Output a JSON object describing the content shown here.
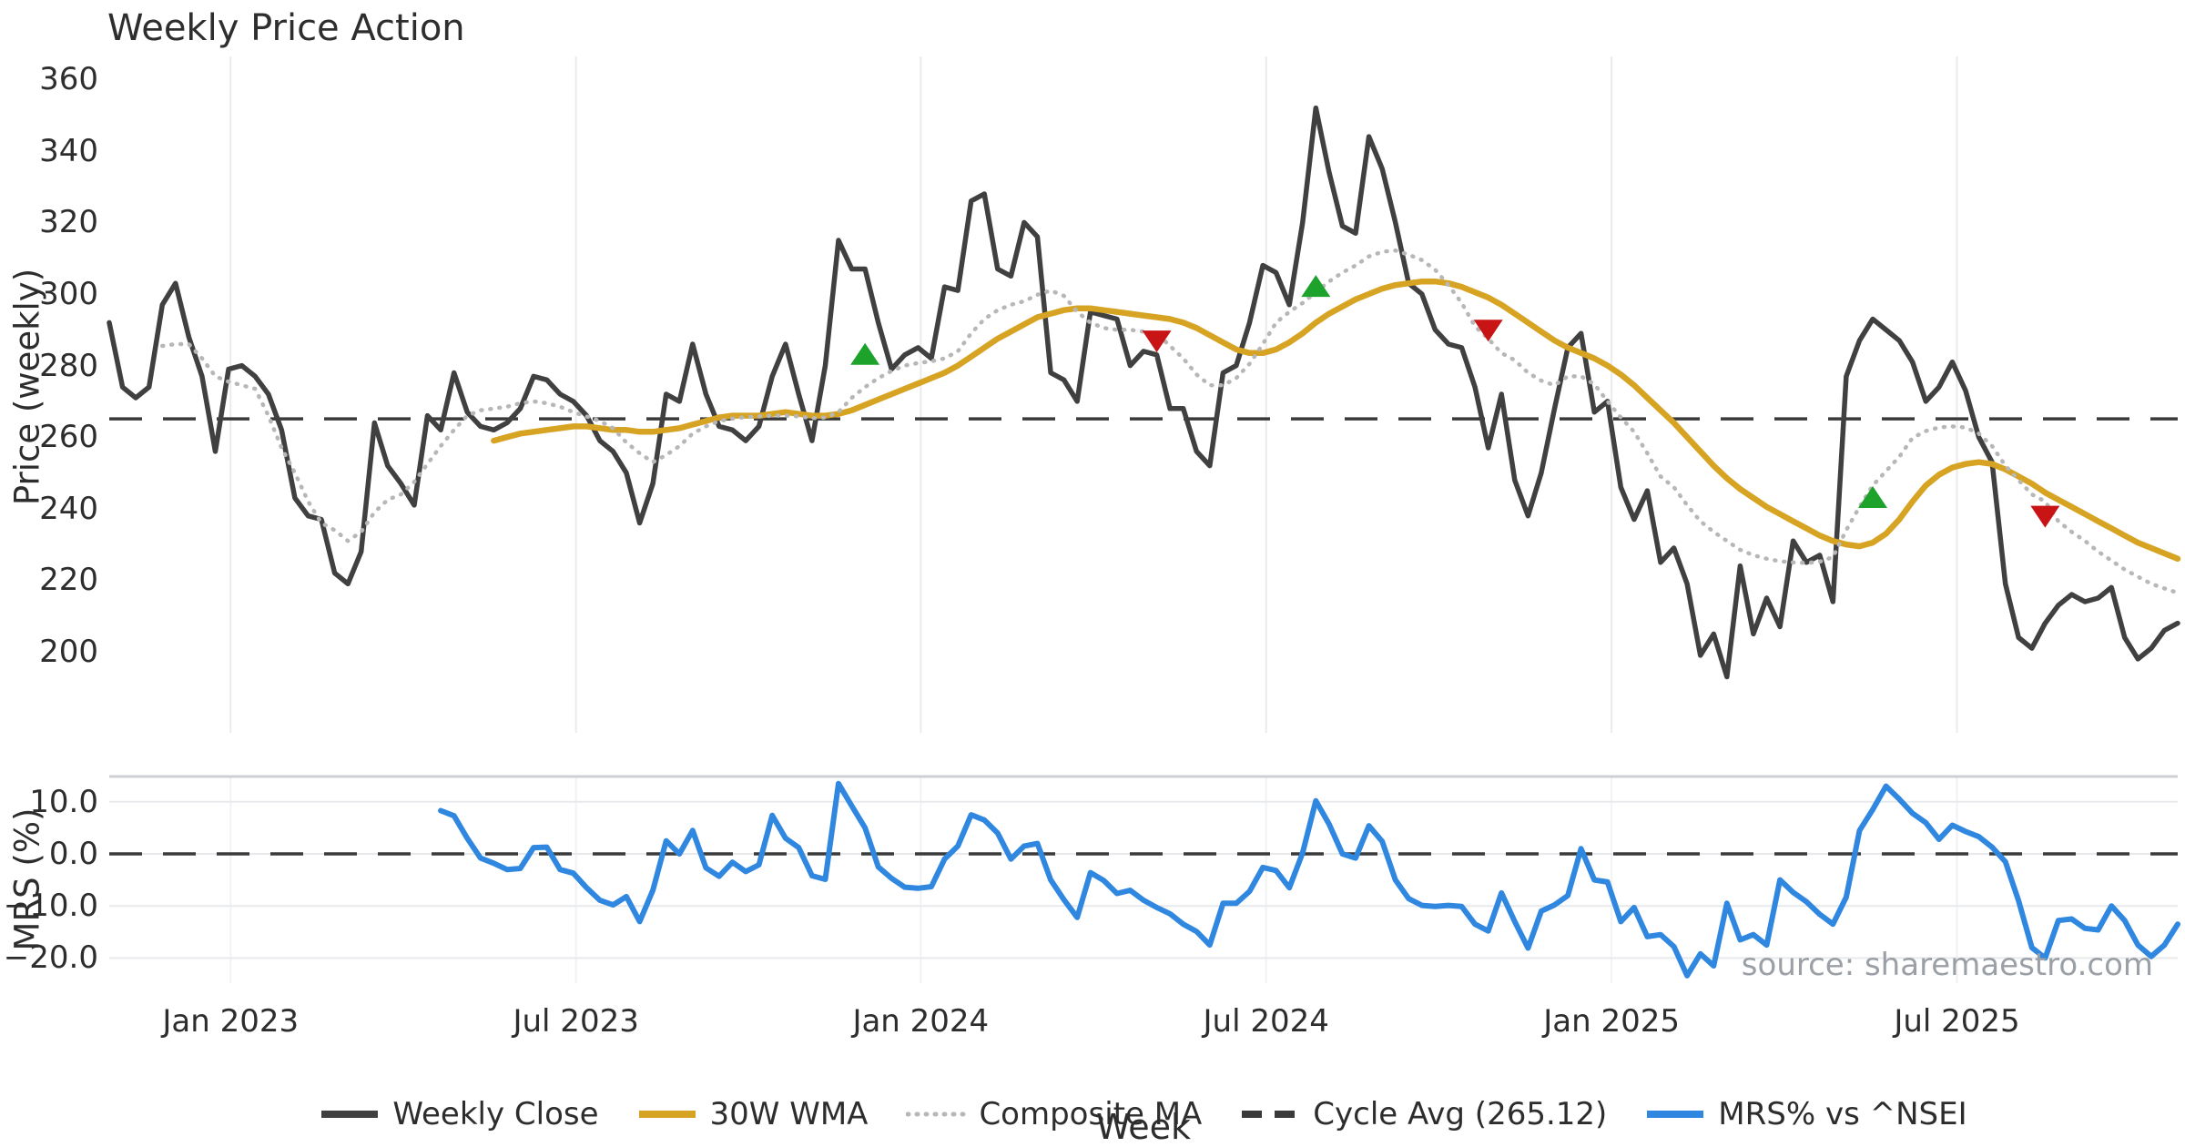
{
  "chart_data": {
    "type": "line",
    "title": "Weekly Price Action",
    "watermark": "source: sharemaestro.com",
    "x_axis": {
      "label": "Week",
      "total_weeks": 157,
      "tick_weeks": [
        9.15,
        35.2,
        61.2,
        87.25,
        113.3,
        139.35
      ],
      "tick_labels": [
        "Jan 2023",
        "Jul 2023",
        "Jan 2024",
        "Jul 2024",
        "Jan 2025",
        "Jul 2025"
      ]
    },
    "price_panel": {
      "ylabel": "Price (weekly)",
      "yticks": [
        360,
        340,
        320,
        300,
        280,
        260,
        240,
        220,
        200
      ],
      "ylim": [
        183,
        365
      ],
      "cycle_avg": 265.12,
      "series": [
        {
          "name": "Weekly Close",
          "style": "solid",
          "color": "#404040",
          "width": 5.5,
          "start_week": 0,
          "values": [
            292,
            274,
            271,
            274,
            297,
            303,
            288,
            277,
            256,
            279,
            280,
            277,
            272,
            262,
            243,
            238,
            237,
            222,
            219,
            228,
            264,
            252,
            247,
            241,
            266,
            262,
            278,
            267,
            263,
            262,
            264,
            268,
            277,
            276,
            272,
            270,
            266,
            259,
            256,
            250,
            236,
            247,
            272,
            270,
            286,
            272,
            263,
            262,
            259,
            263,
            277,
            286,
            272,
            259,
            280,
            315,
            307,
            307,
            292,
            279,
            283,
            285,
            282,
            302,
            301,
            326,
            328,
            307,
            305,
            320,
            316,
            278,
            276,
            270,
            295,
            294,
            293,
            280,
            284,
            283,
            268,
            268,
            256,
            252,
            278,
            280,
            292,
            308,
            306,
            297,
            320,
            352,
            334,
            319,
            317,
            344,
            335,
            320,
            303,
            300,
            290,
            286,
            285,
            274,
            257,
            272,
            248,
            238,
            250,
            268,
            285,
            289,
            267,
            270,
            246,
            237,
            245,
            225,
            229,
            219,
            199,
            205,
            193,
            224,
            205,
            215,
            207,
            231,
            225,
            227,
            214,
            277,
            287,
            293,
            290,
            287,
            281,
            270,
            274,
            281,
            273,
            260,
            253,
            219,
            204,
            201,
            208,
            213,
            216,
            214,
            215,
            218,
            204,
            198,
            201,
            206,
            208
          ]
        },
        {
          "name": "30W WMA",
          "style": "solid",
          "color": "#d7a322",
          "width": 6.5,
          "start_week": 29,
          "values": [
            259,
            260,
            261,
            261.5,
            262,
            262.5,
            263,
            263,
            262.5,
            262,
            262,
            261.5,
            261.5,
            262,
            262.5,
            263.5,
            264.5,
            265.5,
            266,
            266,
            266,
            266.5,
            267,
            266.5,
            266,
            266,
            266.5,
            267.5,
            269,
            270.5,
            272,
            273.5,
            275,
            276.5,
            278,
            280,
            282.5,
            285,
            287.5,
            289.5,
            291.5,
            293.5,
            294.5,
            295.5,
            296,
            296,
            295.5,
            295,
            294.5,
            294,
            293.5,
            293,
            292,
            290.5,
            288.5,
            286.5,
            284.5,
            283.5,
            283.5,
            284.5,
            286.5,
            289,
            292,
            294.5,
            296.5,
            298.5,
            300,
            301.5,
            302.5,
            303,
            303.5,
            303.5,
            303,
            302,
            300.5,
            299,
            297,
            294.5,
            292,
            289.5,
            287,
            285,
            283.5,
            282,
            280,
            277.5,
            274.5,
            271,
            267.5,
            264,
            260,
            256,
            252,
            248.5,
            245.5,
            243,
            240.5,
            238.5,
            236.5,
            234.5,
            232.5,
            231,
            230,
            229.5,
            230.5,
            233,
            237,
            242,
            246.5,
            249.5,
            251.5,
            252.5,
            253,
            252.5,
            251,
            249,
            247,
            244.5,
            242.5,
            240.5,
            238.5,
            236.5,
            234.5,
            232.5,
            230.5,
            229,
            227.5,
            226
          ]
        },
        {
          "name": "Composite MA",
          "style": "dotted",
          "color": "#b7b7b7",
          "width": 4.5,
          "start_week": 4,
          "values": [
            285.5,
            286,
            286,
            282,
            277,
            275.5,
            274.5,
            273.5,
            266,
            257,
            250,
            242,
            236,
            234,
            231,
            233.5,
            239,
            242.5,
            244,
            247.5,
            252.5,
            257.5,
            262,
            266,
            267.5,
            268,
            268.5,
            269.5,
            270,
            269.5,
            268.5,
            267,
            265.8,
            264.5,
            262.5,
            258.5,
            255.5,
            253,
            255,
            257.5,
            261,
            263,
            264.5,
            265.2,
            265.6,
            265.8,
            266,
            266,
            265.8,
            265.3,
            265.5,
            267,
            271,
            274,
            276.5,
            278.5,
            280,
            280.7,
            281.2,
            282,
            284,
            289,
            293,
            295.5,
            297,
            298,
            299.8,
            301,
            299.5,
            295,
            292,
            290.5,
            290,
            290,
            289.5,
            289,
            285.5,
            282,
            277.5,
            274.5,
            274.5,
            276.5,
            280.5,
            286,
            292,
            295,
            297.5,
            300.5,
            303.5,
            306,
            308,
            310.5,
            311.8,
            312.2,
            311,
            309.5,
            306.8,
            302.5,
            297.5,
            291,
            287.5,
            283.5,
            281.5,
            278,
            275.8,
            274.5,
            277,
            277,
            274.8,
            270,
            265.5,
            261.5,
            255.5,
            249,
            246,
            241,
            236.5,
            233.5,
            231,
            228.5,
            227,
            226,
            225.3,
            225,
            224.8,
            225.2,
            226.5,
            234,
            240.5,
            246.5,
            250.5,
            254.5,
            259.8,
            261.7,
            262.7,
            263,
            262.7,
            261,
            257.5,
            252,
            248,
            244,
            242,
            236.5,
            233.5,
            231,
            228,
            225.5,
            223,
            221,
            219,
            217.7,
            216.5
          ]
        }
      ],
      "buy_markers": [
        {
          "week": 57,
          "value": 283
        },
        {
          "week": 91,
          "value": 302
        },
        {
          "week": 133,
          "value": 243
        }
      ],
      "sell_markers": [
        {
          "week": 79,
          "value": 287
        },
        {
          "week": 104,
          "value": 290
        },
        {
          "week": 146,
          "value": 238
        }
      ]
    },
    "mrs_panel": {
      "ylabel": "MRS (%)",
      "ytick_values": [
        10,
        0,
        -10,
        -20
      ],
      "ytick_labels": [
        "10.0",
        "0.0",
        "−10.0",
        "−20.0"
      ],
      "ylim": [
        -25,
        15
      ],
      "zero_line": 0,
      "series": [
        {
          "name": "MRS% vs ^NSEI",
          "style": "solid",
          "color": "#2f87e0",
          "width": 6,
          "start_week": 25,
          "values": [
            8.3,
            7.3,
            3.0,
            -0.8,
            -1.8,
            -3.0,
            -2.8,
            1.2,
            1.3,
            -3.0,
            -3.7,
            -6.5,
            -8.9,
            -9.8,
            -8.2,
            -13.0,
            -7.0,
            2.5,
            0.0,
            4.5,
            -2.7,
            -4.3,
            -1.6,
            -3.4,
            -2.1,
            7.4,
            3.0,
            1.2,
            -4.2,
            -4.9,
            13.5,
            9.2,
            5.0,
            -2.5,
            -4.7,
            -6.4,
            -6.6,
            -6.3,
            -1.0,
            1.5,
            7.5,
            6.5,
            4.0,
            -1.0,
            1.5,
            2.0,
            -5.0,
            -8.8,
            -12.2,
            -3.6,
            -5.1,
            -7.6,
            -7.0,
            -8.9,
            -10.3,
            -11.5,
            -13.5,
            -14.9,
            -17.5,
            -9.5,
            -9.5,
            -7.2,
            -2.6,
            -3.2,
            -6.5,
            0.2,
            10.2,
            5.7,
            0.0,
            -0.8,
            5.4,
            2.4,
            -5.0,
            -8.6,
            -9.9,
            -10.1,
            -9.9,
            -10.1,
            -13.5,
            -14.8,
            -7.5,
            -13.0,
            -18.1,
            -11.0,
            -9.8,
            -8.0,
            1.0,
            -5.0,
            -5.4,
            -13.0,
            -10.3,
            -15.9,
            -15.5,
            -17.8,
            -23.4,
            -19.2,
            -21.5,
            -9.5,
            -16.5,
            -15.5,
            -17.5,
            -5.0,
            -7.4,
            -9.2,
            -11.6,
            -13.5,
            -8.3,
            4.5,
            8.5,
            13.0,
            10.5,
            7.8,
            6.0,
            2.8,
            5.5,
            4.3,
            3.3,
            1.3,
            -1.5,
            -9.0,
            -18.0,
            -20.0,
            -12.8,
            -12.5,
            -14.3,
            -14.6,
            -10.0,
            -12.8,
            -17.5,
            -19.7,
            -17.5,
            -13.5
          ]
        }
      ]
    },
    "legend": [
      {
        "label": "Weekly Close",
        "color": "#404040",
        "style": "solid"
      },
      {
        "label": "30W WMA",
        "color": "#d7a322",
        "style": "solid"
      },
      {
        "label": "Composite MA",
        "color": "#b7b7b7",
        "style": "dotted"
      },
      {
        "label": "Cycle Avg (265.12)",
        "color": "#3a3a3a",
        "style": "dashed"
      },
      {
        "label": "MRS% vs ^NSEI",
        "color": "#2f87e0",
        "style": "solid"
      }
    ],
    "colors": {
      "buy_marker": "#1da32c",
      "sell_marker": "#c81414",
      "grid": "#ebebeb",
      "mrs_grid": "#e7e9ec",
      "mrs_top_border": "#ccd0d5",
      "dash_line": "#3a3a3a",
      "text": "#2d2d2d",
      "watermark": "#9aa0a6"
    }
  }
}
